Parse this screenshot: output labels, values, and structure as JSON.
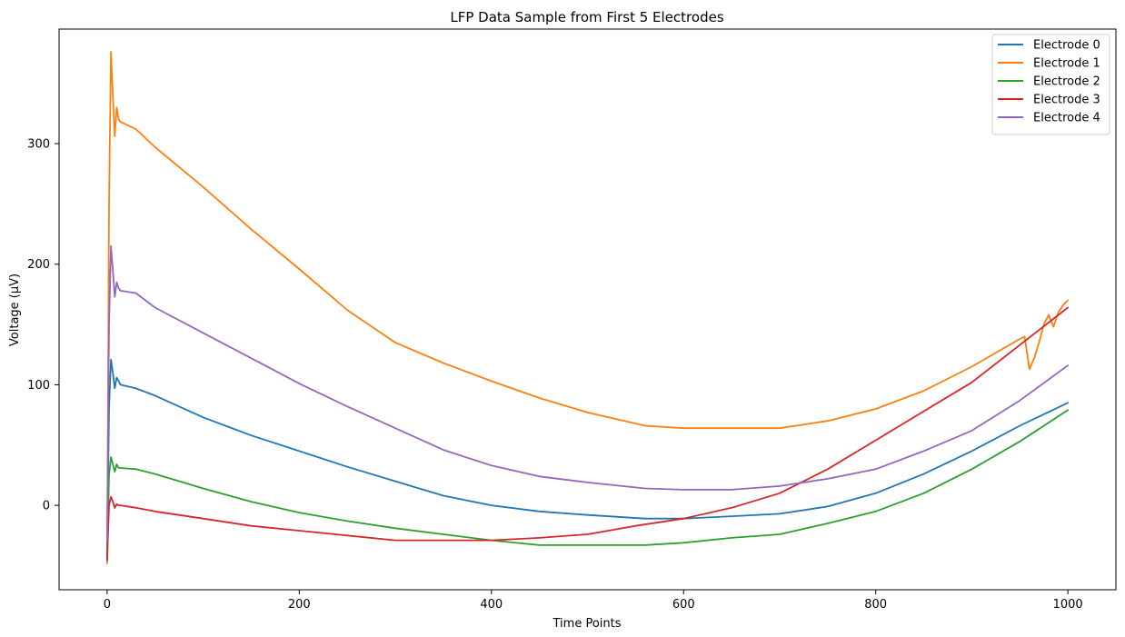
{
  "chart_data": {
    "type": "line",
    "title": "LFP Data Sample from First 5 Electrodes",
    "xlabel": "Time Points",
    "ylabel": "Voltage (µV)",
    "xlim": [
      -50,
      1050
    ],
    "ylim": [
      -70,
      395
    ],
    "xticks": [
      0,
      200,
      400,
      600,
      800,
      1000
    ],
    "yticks": [
      0,
      100,
      200,
      300
    ],
    "grid": false,
    "legend_position": "top-right",
    "series": [
      {
        "name": "Electrode 0",
        "color": "#1f77b4",
        "points": [
          [
            0,
            -40
          ],
          [
            2,
            80
          ],
          [
            4,
            121
          ],
          [
            6,
            110
          ],
          [
            8,
            97
          ],
          [
            10,
            106
          ],
          [
            12,
            103
          ],
          [
            14,
            100
          ],
          [
            30,
            97
          ],
          [
            50,
            91
          ],
          [
            100,
            73
          ],
          [
            150,
            58
          ],
          [
            200,
            45
          ],
          [
            250,
            32
          ],
          [
            300,
            20
          ],
          [
            350,
            8
          ],
          [
            400,
            0
          ],
          [
            450,
            -5
          ],
          [
            500,
            -8
          ],
          [
            560,
            -11
          ],
          [
            600,
            -11
          ],
          [
            650,
            -9
          ],
          [
            700,
            -7
          ],
          [
            750,
            -1
          ],
          [
            800,
            10
          ],
          [
            850,
            26
          ],
          [
            900,
            45
          ],
          [
            950,
            66
          ],
          [
            1000,
            85
          ]
        ]
      },
      {
        "name": "Electrode 1",
        "color": "#ff7f0e",
        "points": [
          [
            0,
            -48
          ],
          [
            2,
            250
          ],
          [
            4,
            376
          ],
          [
            6,
            340
          ],
          [
            8,
            306
          ],
          [
            10,
            330
          ],
          [
            12,
            320
          ],
          [
            14,
            318
          ],
          [
            30,
            312
          ],
          [
            50,
            297
          ],
          [
            100,
            264
          ],
          [
            150,
            229
          ],
          [
            200,
            196
          ],
          [
            250,
            162
          ],
          [
            300,
            135
          ],
          [
            350,
            118
          ],
          [
            400,
            103
          ],
          [
            450,
            89
          ],
          [
            500,
            77
          ],
          [
            560,
            66
          ],
          [
            600,
            64
          ],
          [
            650,
            64
          ],
          [
            700,
            64
          ],
          [
            750,
            70
          ],
          [
            800,
            80
          ],
          [
            850,
            95
          ],
          [
            900,
            115
          ],
          [
            950,
            138
          ],
          [
            955,
            140
          ],
          [
            960,
            113
          ],
          [
            965,
            122
          ],
          [
            970,
            135
          ],
          [
            975,
            150
          ],
          [
            980,
            158
          ],
          [
            985,
            148
          ],
          [
            990,
            160
          ],
          [
            995,
            166
          ],
          [
            1000,
            170
          ]
        ]
      },
      {
        "name": "Electrode 2",
        "color": "#2ca02c",
        "points": [
          [
            0,
            -46
          ],
          [
            2,
            25
          ],
          [
            4,
            40
          ],
          [
            6,
            34
          ],
          [
            8,
            28
          ],
          [
            10,
            34
          ],
          [
            12,
            31
          ],
          [
            14,
            31
          ],
          [
            30,
            30
          ],
          [
            50,
            26
          ],
          [
            100,
            14
          ],
          [
            150,
            3
          ],
          [
            200,
            -6
          ],
          [
            250,
            -13
          ],
          [
            300,
            -19
          ],
          [
            350,
            -24
          ],
          [
            400,
            -29
          ],
          [
            450,
            -33
          ],
          [
            500,
            -33
          ],
          [
            560,
            -33
          ],
          [
            600,
            -31
          ],
          [
            650,
            -27
          ],
          [
            700,
            -24
          ],
          [
            750,
            -15
          ],
          [
            800,
            -5
          ],
          [
            850,
            10
          ],
          [
            900,
            30
          ],
          [
            950,
            53
          ],
          [
            1000,
            79
          ]
        ]
      },
      {
        "name": "Electrode 3",
        "color": "#d62728",
        "points": [
          [
            0,
            -45
          ],
          [
            2,
            0
          ],
          [
            4,
            7
          ],
          [
            6,
            3
          ],
          [
            8,
            -2
          ],
          [
            10,
            1
          ],
          [
            12,
            0
          ],
          [
            14,
            0
          ],
          [
            30,
            -2
          ],
          [
            50,
            -5
          ],
          [
            100,
            -11
          ],
          [
            150,
            -17
          ],
          [
            200,
            -21
          ],
          [
            250,
            -25
          ],
          [
            300,
            -29
          ],
          [
            350,
            -29
          ],
          [
            400,
            -29
          ],
          [
            450,
            -27
          ],
          [
            500,
            -24
          ],
          [
            550,
            -17
          ],
          [
            600,
            -11
          ],
          [
            650,
            -2
          ],
          [
            700,
            10
          ],
          [
            750,
            30
          ],
          [
            800,
            54
          ],
          [
            850,
            78
          ],
          [
            900,
            102
          ],
          [
            950,
            133
          ],
          [
            1000,
            164
          ]
        ]
      },
      {
        "name": "Electrode 4",
        "color": "#9467bd",
        "points": [
          [
            0,
            -30
          ],
          [
            2,
            150
          ],
          [
            4,
            215
          ],
          [
            6,
            195
          ],
          [
            8,
            173
          ],
          [
            10,
            185
          ],
          [
            12,
            180
          ],
          [
            14,
            178
          ],
          [
            30,
            176
          ],
          [
            50,
            164
          ],
          [
            100,
            143
          ],
          [
            150,
            122
          ],
          [
            200,
            101
          ],
          [
            250,
            82
          ],
          [
            300,
            64
          ],
          [
            350,
            46
          ],
          [
            400,
            33
          ],
          [
            450,
            24
          ],
          [
            500,
            19
          ],
          [
            560,
            14
          ],
          [
            600,
            13
          ],
          [
            650,
            13
          ],
          [
            700,
            16
          ],
          [
            750,
            22
          ],
          [
            800,
            30
          ],
          [
            850,
            45
          ],
          [
            900,
            62
          ],
          [
            950,
            87
          ],
          [
            1000,
            116
          ]
        ]
      }
    ]
  }
}
